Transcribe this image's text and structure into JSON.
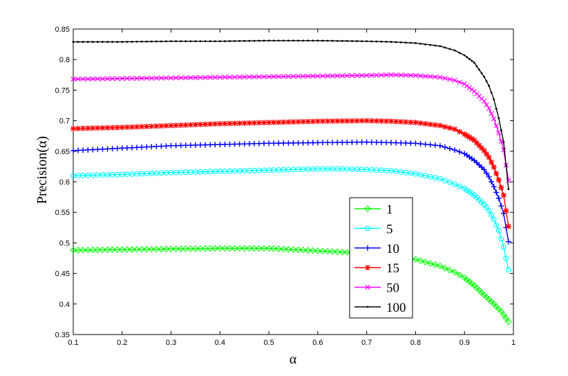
{
  "chart_data": {
    "type": "line",
    "title": "",
    "xlabel": "α",
    "ylabel": "Precision(α)",
    "xlim": [
      0.1,
      1.0
    ],
    "ylim": [
      0.35,
      0.85
    ],
    "xticks": [
      0.1,
      0.2,
      0.3,
      0.4,
      0.5,
      0.6,
      0.7,
      0.8,
      0.9,
      1.0
    ],
    "xtick_labels": [
      "0.1",
      "0.2",
      "0.3",
      "0.4",
      "0.5",
      "0.6",
      "0.7",
      "0.8",
      "0.9",
      "1"
    ],
    "yticks": [
      0.35,
      0.4,
      0.45,
      0.5,
      0.55,
      0.6,
      0.65,
      0.7,
      0.75,
      0.8,
      0.85
    ],
    "ytick_labels": [
      "0.35",
      "0.4",
      "0.45",
      "0.5",
      "0.55",
      "0.6",
      "0.65",
      "0.7",
      "0.75",
      "0.8",
      "0.85"
    ],
    "grid": false,
    "legend_position": "bottom-right",
    "series": [
      {
        "name": "1",
        "color": "#00ff00",
        "marker": "diamond",
        "points": [
          [
            0.1,
            0.488
          ],
          [
            0.2,
            0.489
          ],
          [
            0.3,
            0.49
          ],
          [
            0.4,
            0.491
          ],
          [
            0.5,
            0.491
          ],
          [
            0.6,
            0.487
          ],
          [
            0.7,
            0.483
          ],
          [
            0.75,
            0.478
          ],
          [
            0.8,
            0.473
          ],
          [
            0.85,
            0.462
          ],
          [
            0.88,
            0.452
          ],
          [
            0.9,
            0.443
          ],
          [
            0.92,
            0.43
          ],
          [
            0.94,
            0.415
          ],
          [
            0.96,
            0.4
          ],
          [
            0.975,
            0.388
          ],
          [
            0.99,
            0.371
          ]
        ]
      },
      {
        "name": "5",
        "color": "#00ffff",
        "marker": "circle",
        "points": [
          [
            0.1,
            0.61
          ],
          [
            0.2,
            0.612
          ],
          [
            0.3,
            0.615
          ],
          [
            0.4,
            0.617
          ],
          [
            0.5,
            0.619
          ],
          [
            0.6,
            0.621
          ],
          [
            0.65,
            0.621
          ],
          [
            0.7,
            0.62
          ],
          [
            0.75,
            0.618
          ],
          [
            0.8,
            0.613
          ],
          [
            0.85,
            0.605
          ],
          [
            0.88,
            0.596
          ],
          [
            0.9,
            0.589
          ],
          [
            0.92,
            0.578
          ],
          [
            0.94,
            0.563
          ],
          [
            0.95,
            0.553
          ],
          [
            0.96,
            0.538
          ],
          [
            0.97,
            0.52
          ],
          [
            0.98,
            0.493
          ],
          [
            0.99,
            0.456
          ]
        ]
      },
      {
        "name": "10",
        "color": "#0000ff",
        "marker": "plus",
        "points": [
          [
            0.1,
            0.651
          ],
          [
            0.2,
            0.655
          ],
          [
            0.3,
            0.659
          ],
          [
            0.4,
            0.661
          ],
          [
            0.5,
            0.663
          ],
          [
            0.6,
            0.664
          ],
          [
            0.7,
            0.665
          ],
          [
            0.75,
            0.664
          ],
          [
            0.8,
            0.663
          ],
          [
            0.85,
            0.659
          ],
          [
            0.88,
            0.652
          ],
          [
            0.9,
            0.646
          ],
          [
            0.92,
            0.635
          ],
          [
            0.94,
            0.62
          ],
          [
            0.95,
            0.608
          ],
          [
            0.96,
            0.592
          ],
          [
            0.97,
            0.573
          ],
          [
            0.98,
            0.548
          ],
          [
            0.99,
            0.502
          ]
        ]
      },
      {
        "name": "15",
        "color": "#ff0000",
        "marker": "star",
        "points": [
          [
            0.1,
            0.687
          ],
          [
            0.2,
            0.689
          ],
          [
            0.3,
            0.692
          ],
          [
            0.4,
            0.695
          ],
          [
            0.5,
            0.697
          ],
          [
            0.6,
            0.699
          ],
          [
            0.7,
            0.7
          ],
          [
            0.75,
            0.699
          ],
          [
            0.8,
            0.697
          ],
          [
            0.85,
            0.692
          ],
          [
            0.88,
            0.686
          ],
          [
            0.9,
            0.678
          ],
          [
            0.92,
            0.668
          ],
          [
            0.94,
            0.651
          ],
          [
            0.95,
            0.64
          ],
          [
            0.96,
            0.624
          ],
          [
            0.97,
            0.603
          ],
          [
            0.98,
            0.578
          ],
          [
            0.99,
            0.527
          ]
        ]
      },
      {
        "name": "50",
        "color": "#ff00ff",
        "marker": "x",
        "points": [
          [
            0.1,
            0.768
          ],
          [
            0.2,
            0.769
          ],
          [
            0.3,
            0.77
          ],
          [
            0.4,
            0.771
          ],
          [
            0.5,
            0.772
          ],
          [
            0.6,
            0.773
          ],
          [
            0.7,
            0.774
          ],
          [
            0.75,
            0.775
          ],
          [
            0.8,
            0.774
          ],
          [
            0.85,
            0.771
          ],
          [
            0.88,
            0.766
          ],
          [
            0.9,
            0.76
          ],
          [
            0.92,
            0.748
          ],
          [
            0.94,
            0.732
          ],
          [
            0.95,
            0.72
          ],
          [
            0.96,
            0.703
          ],
          [
            0.97,
            0.68
          ],
          [
            0.98,
            0.652
          ],
          [
            0.99,
            0.602
          ]
        ]
      },
      {
        "name": "100",
        "color": "#000000",
        "marker": "dot",
        "points": [
          [
            0.1,
            0.829
          ],
          [
            0.2,
            0.829
          ],
          [
            0.3,
            0.83
          ],
          [
            0.4,
            0.83
          ],
          [
            0.5,
            0.831
          ],
          [
            0.6,
            0.831
          ],
          [
            0.7,
            0.83
          ],
          [
            0.75,
            0.829
          ],
          [
            0.8,
            0.827
          ],
          [
            0.85,
            0.822
          ],
          [
            0.88,
            0.815
          ],
          [
            0.9,
            0.807
          ],
          [
            0.92,
            0.795
          ],
          [
            0.94,
            0.772
          ],
          [
            0.95,
            0.757
          ],
          [
            0.96,
            0.735
          ],
          [
            0.97,
            0.704
          ],
          [
            0.98,
            0.665
          ],
          [
            0.99,
            0.588
          ]
        ]
      }
    ]
  }
}
